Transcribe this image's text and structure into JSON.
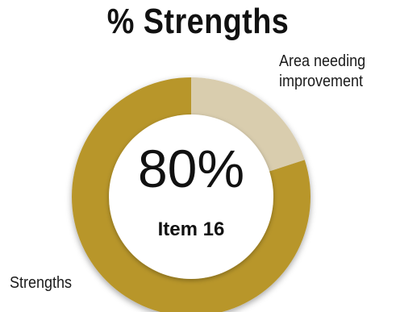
{
  "title": "% Strengths",
  "center": {
    "value_label": "80%",
    "item_label": "Item 16"
  },
  "labels": {
    "improvement_line1": "Area needing",
    "improvement_line2": "improvement",
    "strengths": "Strengths"
  },
  "colors": {
    "strengths": "#b8962c",
    "improvement": "#d9cdae",
    "center": "#ffffff"
  },
  "chart_data": {
    "type": "pie",
    "title": "% Strengths",
    "subtitle": "Item 16",
    "slices": [
      {
        "label": "Strengths",
        "value": 80
      },
      {
        "label": "Area needing improvement",
        "value": 20
      }
    ],
    "center_text": "80%"
  }
}
